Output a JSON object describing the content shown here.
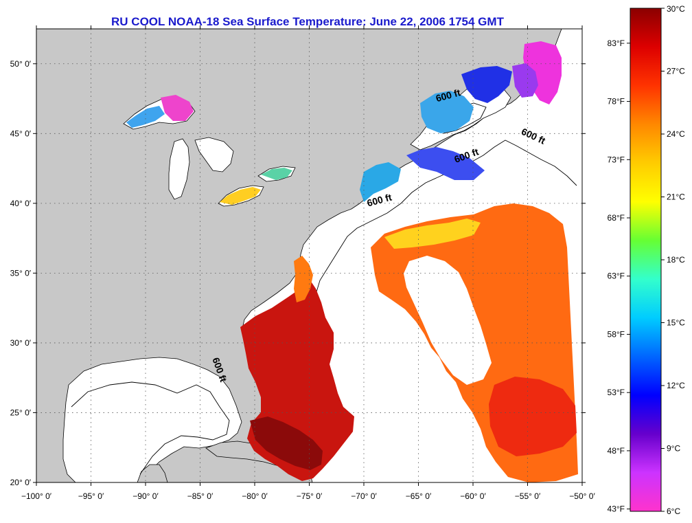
{
  "title": "RU COOL  NOAA-18  Sea Surface Temperature:  June 22, 2006 1754 GMT",
  "map": {
    "lon_range": [
      -100,
      -50
    ],
    "lat_range": [
      20,
      52.5
    ],
    "lon_ticks": [
      {
        "value": -100,
        "label": "−100° 0′"
      },
      {
        "value": -95,
        "label": "−95° 0′"
      },
      {
        "value": -90,
        "label": "−90° 0′"
      },
      {
        "value": -85,
        "label": "−85° 0′"
      },
      {
        "value": -80,
        "label": "−80° 0′"
      },
      {
        "value": -75,
        "label": "−75° 0′"
      },
      {
        "value": -70,
        "label": "−70° 0′"
      },
      {
        "value": -65,
        "label": "−65° 0′"
      },
      {
        "value": -60,
        "label": "−60° 0′"
      },
      {
        "value": -55,
        "label": "−55° 0′"
      },
      {
        "value": -50,
        "label": "−50° 0′"
      }
    ],
    "lat_ticks": [
      {
        "value": 20,
        "label": "20° 0′"
      },
      {
        "value": 25,
        "label": "25° 0′"
      },
      {
        "value": 30,
        "label": "30° 0′"
      },
      {
        "value": 35,
        "label": "35° 0′"
      },
      {
        "value": 40,
        "label": "40° 0′"
      },
      {
        "value": 45,
        "label": "45° 0′"
      },
      {
        "value": 50,
        "label": "50° 0′"
      }
    ],
    "contour_labels": [
      {
        "text": "600 ft",
        "lon": -62.2,
        "lat": 47.5,
        "rotate": -15
      },
      {
        "text": "600 ft",
        "lon": -54.6,
        "lat": 44.6,
        "rotate": 25
      },
      {
        "text": "600 ft",
        "lon": -60.5,
        "lat": 43.2,
        "rotate": -20
      },
      {
        "text": "600 ft",
        "lon": -68.5,
        "lat": 40.0,
        "rotate": -15
      },
      {
        "text": "600 ft",
        "lon": -83.5,
        "lat": 28.0,
        "rotate": 70
      }
    ],
    "land_color": "#c8c8c8",
    "ocean_color": "#ffffff"
  },
  "colorbar": {
    "celsius": [
      {
        "value": 30,
        "label": "30°C"
      },
      {
        "value": 27,
        "label": "27°C"
      },
      {
        "value": 24,
        "label": "24°C"
      },
      {
        "value": 21,
        "label": "21°C"
      },
      {
        "value": 18,
        "label": "18°C"
      },
      {
        "value": 15,
        "label": "15°C"
      },
      {
        "value": 12,
        "label": "12°C"
      },
      {
        "value": 9,
        "label": "9°C"
      },
      {
        "value": 6,
        "label": "6°C"
      }
    ],
    "fahrenheit": [
      {
        "value": 83,
        "label": "83°F"
      },
      {
        "value": 78,
        "label": "78°F"
      },
      {
        "value": 73,
        "label": "73°F"
      },
      {
        "value": 68,
        "label": "68°F"
      },
      {
        "value": 63,
        "label": "63°F"
      },
      {
        "value": 58,
        "label": "58°F"
      },
      {
        "value": 53,
        "label": "53°F"
      },
      {
        "value": 48,
        "label": "48°F"
      },
      {
        "value": 43,
        "label": "43°F"
      }
    ],
    "range_c": [
      6,
      30
    ],
    "colors": [
      "#ff33cc",
      "#cc33ff",
      "#6600cc",
      "#0000ff",
      "#0066ff",
      "#00ccff",
      "#33ffcc",
      "#66ff33",
      "#ffff00",
      "#ffcc00",
      "#ff8800",
      "#ff3300",
      "#dd0000",
      "#8b0000"
    ]
  }
}
